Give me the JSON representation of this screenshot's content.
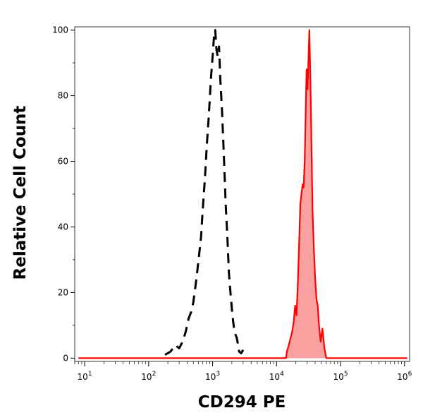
{
  "chart_data": {
    "type": "line",
    "title": "",
    "xlabel": "CD294 PE",
    "ylabel": "Relative Cell Count",
    "xscale": "log",
    "xlim": [
      7,
      1200000
    ],
    "ylim": [
      -1,
      101
    ],
    "x_ticks": [
      {
        "base": "10",
        "exp": "1",
        "value": 10
      },
      {
        "base": "10",
        "exp": "2",
        "value": 100
      },
      {
        "base": "10",
        "exp": "3",
        "value": 1000
      },
      {
        "base": "10",
        "exp": "4",
        "value": 10000
      },
      {
        "base": "10",
        "exp": "5",
        "value": 100000
      },
      {
        "base": "10",
        "exp": "6",
        "value": 1000000
      }
    ],
    "y_ticks": [
      {
        "label": "0",
        "value": 0
      },
      {
        "label": "20",
        "value": 20
      },
      {
        "label": "40",
        "value": 40
      },
      {
        "label": "60",
        "value": 60
      },
      {
        "label": "80",
        "value": 80
      },
      {
        "label": "100",
        "value": 100
      }
    ],
    "grid": false,
    "legend": "none",
    "series": [
      {
        "style": "dashed",
        "color": "#000000",
        "fill": false,
        "points": [
          [
            180,
            1
          ],
          [
            220,
            2
          ],
          [
            260,
            4
          ],
          [
            300,
            3
          ],
          [
            340,
            5
          ],
          [
            380,
            8
          ],
          [
            420,
            12
          ],
          [
            460,
            14
          ],
          [
            500,
            17
          ],
          [
            540,
            22
          ],
          [
            580,
            27
          ],
          [
            620,
            32
          ],
          [
            660,
            37
          ],
          [
            700,
            45
          ],
          [
            760,
            55
          ],
          [
            820,
            66
          ],
          [
            880,
            75
          ],
          [
            940,
            85
          ],
          [
            1000,
            92
          ],
          [
            1050,
            98
          ],
          [
            1100,
            100
          ],
          [
            1150,
            94
          ],
          [
            1200,
            92
          ],
          [
            1260,
            95
          ],
          [
            1320,
            85
          ],
          [
            1400,
            76
          ],
          [
            1500,
            62
          ],
          [
            1600,
            47
          ],
          [
            1700,
            37
          ],
          [
            1800,
            26
          ],
          [
            1900,
            20
          ],
          [
            2000,
            15
          ],
          [
            2100,
            11
          ],
          [
            2200,
            8
          ],
          [
            2400,
            6
          ],
          [
            2600,
            2
          ],
          [
            2800,
            1.5
          ],
          [
            3000,
            2.5
          ]
        ]
      },
      {
        "style": "solid",
        "color": "#ff0000",
        "fill": true,
        "fill_color": "#f9a0a0",
        "points": [
          [
            8,
            0
          ],
          [
            14000,
            0
          ],
          [
            14500,
            2
          ],
          [
            15500,
            4
          ],
          [
            16500,
            6
          ],
          [
            17500,
            8
          ],
          [
            18500,
            11
          ],
          [
            19500,
            16
          ],
          [
            20500,
            13
          ],
          [
            21500,
            23
          ],
          [
            22500,
            35
          ],
          [
            23500,
            47
          ],
          [
            24500,
            50
          ],
          [
            25500,
            53
          ],
          [
            26500,
            52
          ],
          [
            27500,
            60
          ],
          [
            28500,
            75
          ],
          [
            29500,
            88
          ],
          [
            30500,
            82
          ],
          [
            31500,
            91
          ],
          [
            32500,
            100
          ],
          [
            33500,
            88
          ],
          [
            34500,
            75
          ],
          [
            35500,
            60
          ],
          [
            36500,
            45
          ],
          [
            38000,
            35
          ],
          [
            40000,
            25
          ],
          [
            42000,
            18
          ],
          [
            44000,
            16
          ],
          [
            46000,
            10
          ],
          [
            49000,
            5
          ],
          [
            52000,
            9
          ],
          [
            56000,
            3
          ],
          [
            60000,
            0
          ],
          [
            1100000,
            0
          ]
        ]
      }
    ]
  }
}
